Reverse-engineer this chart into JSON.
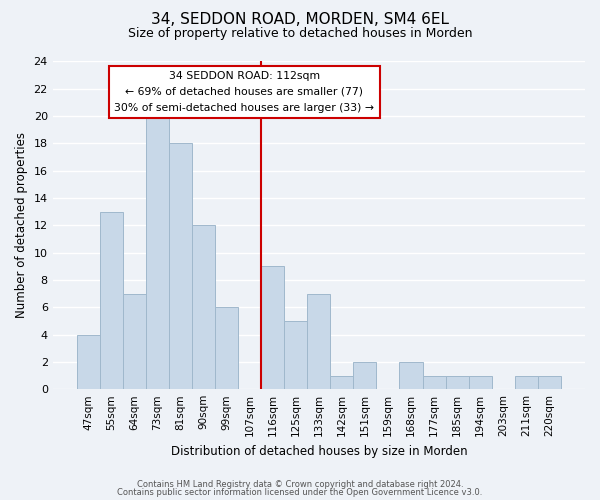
{
  "title": "34, SEDDON ROAD, MORDEN, SM4 6EL",
  "subtitle": "Size of property relative to detached houses in Morden",
  "xlabel": "Distribution of detached houses by size in Morden",
  "ylabel": "Number of detached properties",
  "bar_labels": [
    "47sqm",
    "55sqm",
    "64sqm",
    "73sqm",
    "81sqm",
    "90sqm",
    "99sqm",
    "107sqm",
    "116sqm",
    "125sqm",
    "133sqm",
    "142sqm",
    "151sqm",
    "159sqm",
    "168sqm",
    "177sqm",
    "185sqm",
    "194sqm",
    "203sqm",
    "211sqm",
    "220sqm"
  ],
  "bar_values": [
    4,
    13,
    7,
    20,
    18,
    12,
    6,
    0,
    9,
    5,
    7,
    1,
    2,
    0,
    2,
    1,
    1,
    1,
    0,
    1,
    1
  ],
  "bar_color": "#c8d8e8",
  "bar_edge_color": "#a0b8cc",
  "vline_label": "116sqm",
  "vline_color": "#cc0000",
  "ylim": [
    0,
    24
  ],
  "yticks": [
    0,
    2,
    4,
    6,
    8,
    10,
    12,
    14,
    16,
    18,
    20,
    22,
    24
  ],
  "annotation_title": "34 SEDDON ROAD: 112sqm",
  "annotation_line1": "← 69% of detached houses are smaller (77)",
  "annotation_line2": "30% of semi-detached houses are larger (33) →",
  "annotation_box_color": "#ffffff",
  "annotation_box_edge": "#cc0000",
  "footer1": "Contains HM Land Registry data © Crown copyright and database right 2024.",
  "footer2": "Contains public sector information licensed under the Open Government Licence v3.0.",
  "background_color": "#eef2f7",
  "grid_color": "#ffffff"
}
